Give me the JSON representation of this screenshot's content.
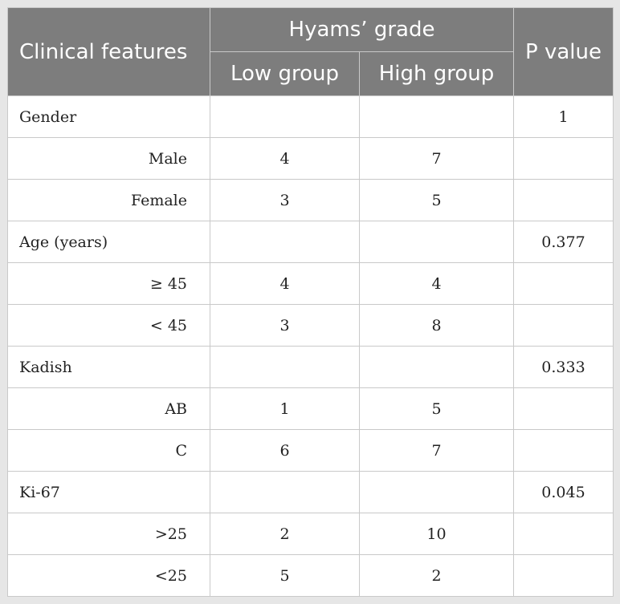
{
  "table": {
    "headers": {
      "clinical_features": "Clinical features",
      "hyams_grade": "Hyams’ grade",
      "low_group": "Low group",
      "high_group": "High group",
      "p_value": "P value"
    },
    "rows": [
      {
        "label": "Gender",
        "low": "",
        "high": "",
        "p": "1",
        "kind": "category"
      },
      {
        "label": "Male",
        "low": "4",
        "high": "7",
        "p": "",
        "kind": "sub"
      },
      {
        "label": "Female",
        "low": "3",
        "high": "5",
        "p": "",
        "kind": "sub"
      },
      {
        "label": "Age (years)",
        "low": "",
        "high": "",
        "p": "0.377",
        "kind": "category"
      },
      {
        "label": "≥ 45",
        "low": "4",
        "high": "4",
        "p": "",
        "kind": "sub"
      },
      {
        "label": "< 45",
        "low": "3",
        "high": "8",
        "p": "",
        "kind": "sub"
      },
      {
        "label": "Kadish",
        "low": "",
        "high": "",
        "p": "0.333",
        "kind": "category"
      },
      {
        "label": "AB",
        "low": "1",
        "high": "5",
        "p": "",
        "kind": "sub"
      },
      {
        "label": "C",
        "low": "6",
        "high": "7",
        "p": "",
        "kind": "sub"
      },
      {
        "label": "Ki-67",
        "low": "",
        "high": "",
        "p": "0.045",
        "kind": "category"
      },
      {
        "label": ">25",
        "low": "2",
        "high": "10",
        "p": "",
        "kind": "sub"
      },
      {
        "label": "<25",
        "low": "5",
        "high": "2",
        "p": "",
        "kind": "sub"
      }
    ]
  }
}
